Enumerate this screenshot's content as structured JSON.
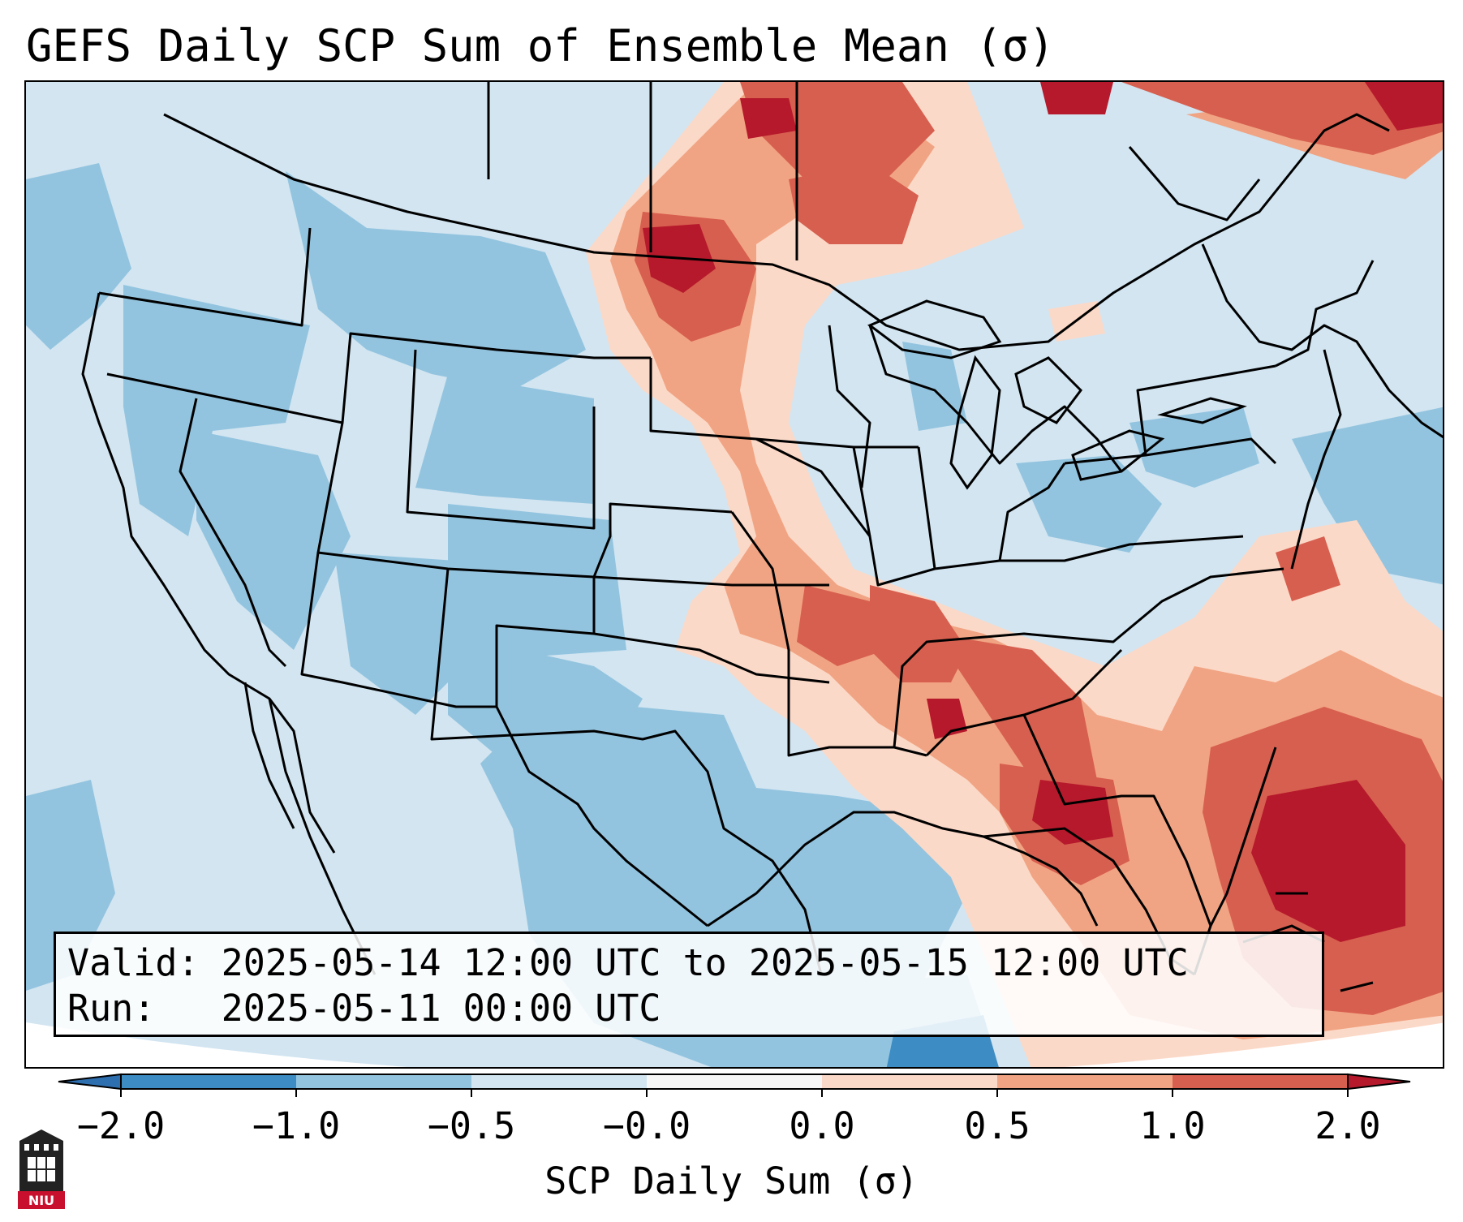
{
  "title": "GEFS Daily SCP Sum of Ensemble Mean (σ)",
  "info": {
    "valid_label": "Valid:",
    "valid_value": "2025-05-14 12:00 UTC to 2025-05-15 12:00 UTC",
    "run_label": "Run:",
    "run_value": "2025-05-11 00:00 UTC"
  },
  "colorbar": {
    "label": "SCP Daily Sum (σ)",
    "ticks": [
      "−2.0",
      "−1.0",
      "−0.5",
      "−0.0",
      "0.0",
      "0.5",
      "1.0",
      "2.0"
    ],
    "colors": [
      "#3d8cc3",
      "#93c4df",
      "#d2e5f1",
      "#f7f7f7",
      "#fbd9c8",
      "#f1a483",
      "#d75f4f"
    ],
    "extend_low_color": "#2e6fb0",
    "extend_high_color": "#b6192b"
  },
  "map": {
    "region": "Contiguous United States",
    "field_colors": {
      "very_low": "#3d8cc3",
      "low": "#93c4df",
      "slight_low": "#d2e5f1",
      "slight_high": "#fbd9c8",
      "high": "#f1a483",
      "higher": "#d75f4f",
      "very_high": "#b6192b"
    }
  },
  "logo": {
    "text": "NIU",
    "icon": "niu-castle-icon",
    "color": "#c8102e"
  }
}
